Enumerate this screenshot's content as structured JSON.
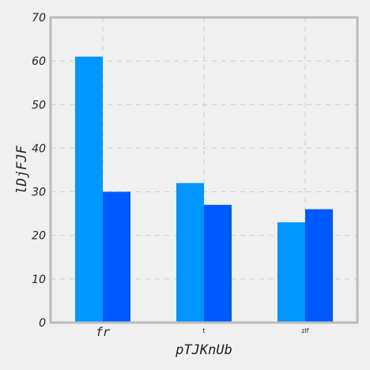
{
  "chart_data": {
    "type": "bar",
    "title": "",
    "xlabel": "pTJKnUb",
    "ylabel": "lDjFJF",
    "categories": [
      "fr",
      "t",
      "zlf"
    ],
    "series": [
      {
        "values": [
          61,
          32,
          23
        ],
        "color": "#0096ff"
      },
      {
        "values": [
          30,
          27,
          26
        ],
        "color": "#0058ff"
      }
    ],
    "ylim": [
      0,
      70
    ],
    "yticks": [
      0,
      10,
      20,
      30,
      40,
      50,
      60,
      70
    ],
    "grid": true
  },
  "colors": {
    "background": "#f0f0f0",
    "frame": "#bbbbbb",
    "grid": "#cccccc"
  }
}
